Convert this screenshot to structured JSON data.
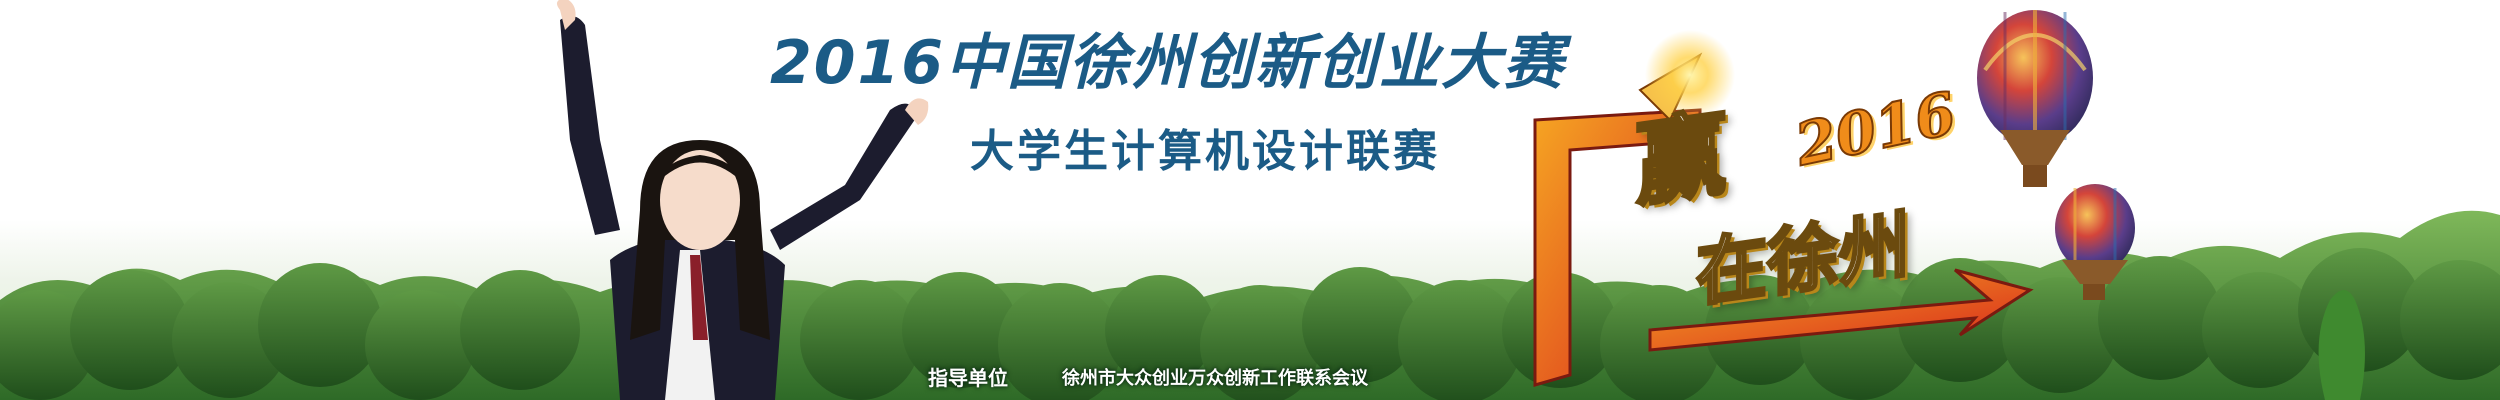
{
  "banner": {
    "title": "2016中国徐州创新创业大赛",
    "subtitle": "大学生计算机设计联赛",
    "slogan": {
      "win": "赢",
      "year": "2016",
      "place": "在徐州"
    },
    "footer": {
      "guide_label": "指导单位",
      "guide_org": "徐州市大众创业万众创新工作联系会议"
    }
  },
  "colors": {
    "title": "#1b5b86",
    "slogan_red": "#d8261c",
    "slogan_orange": "#f08c1a",
    "trees_dark": "#2f6b2a",
    "trees_light": "#6aa84f"
  },
  "icons": {
    "balloon_large": "hot-air-balloon-icon",
    "balloon_small": "hot-air-balloon-icon",
    "student": "cheering-student-figure"
  }
}
